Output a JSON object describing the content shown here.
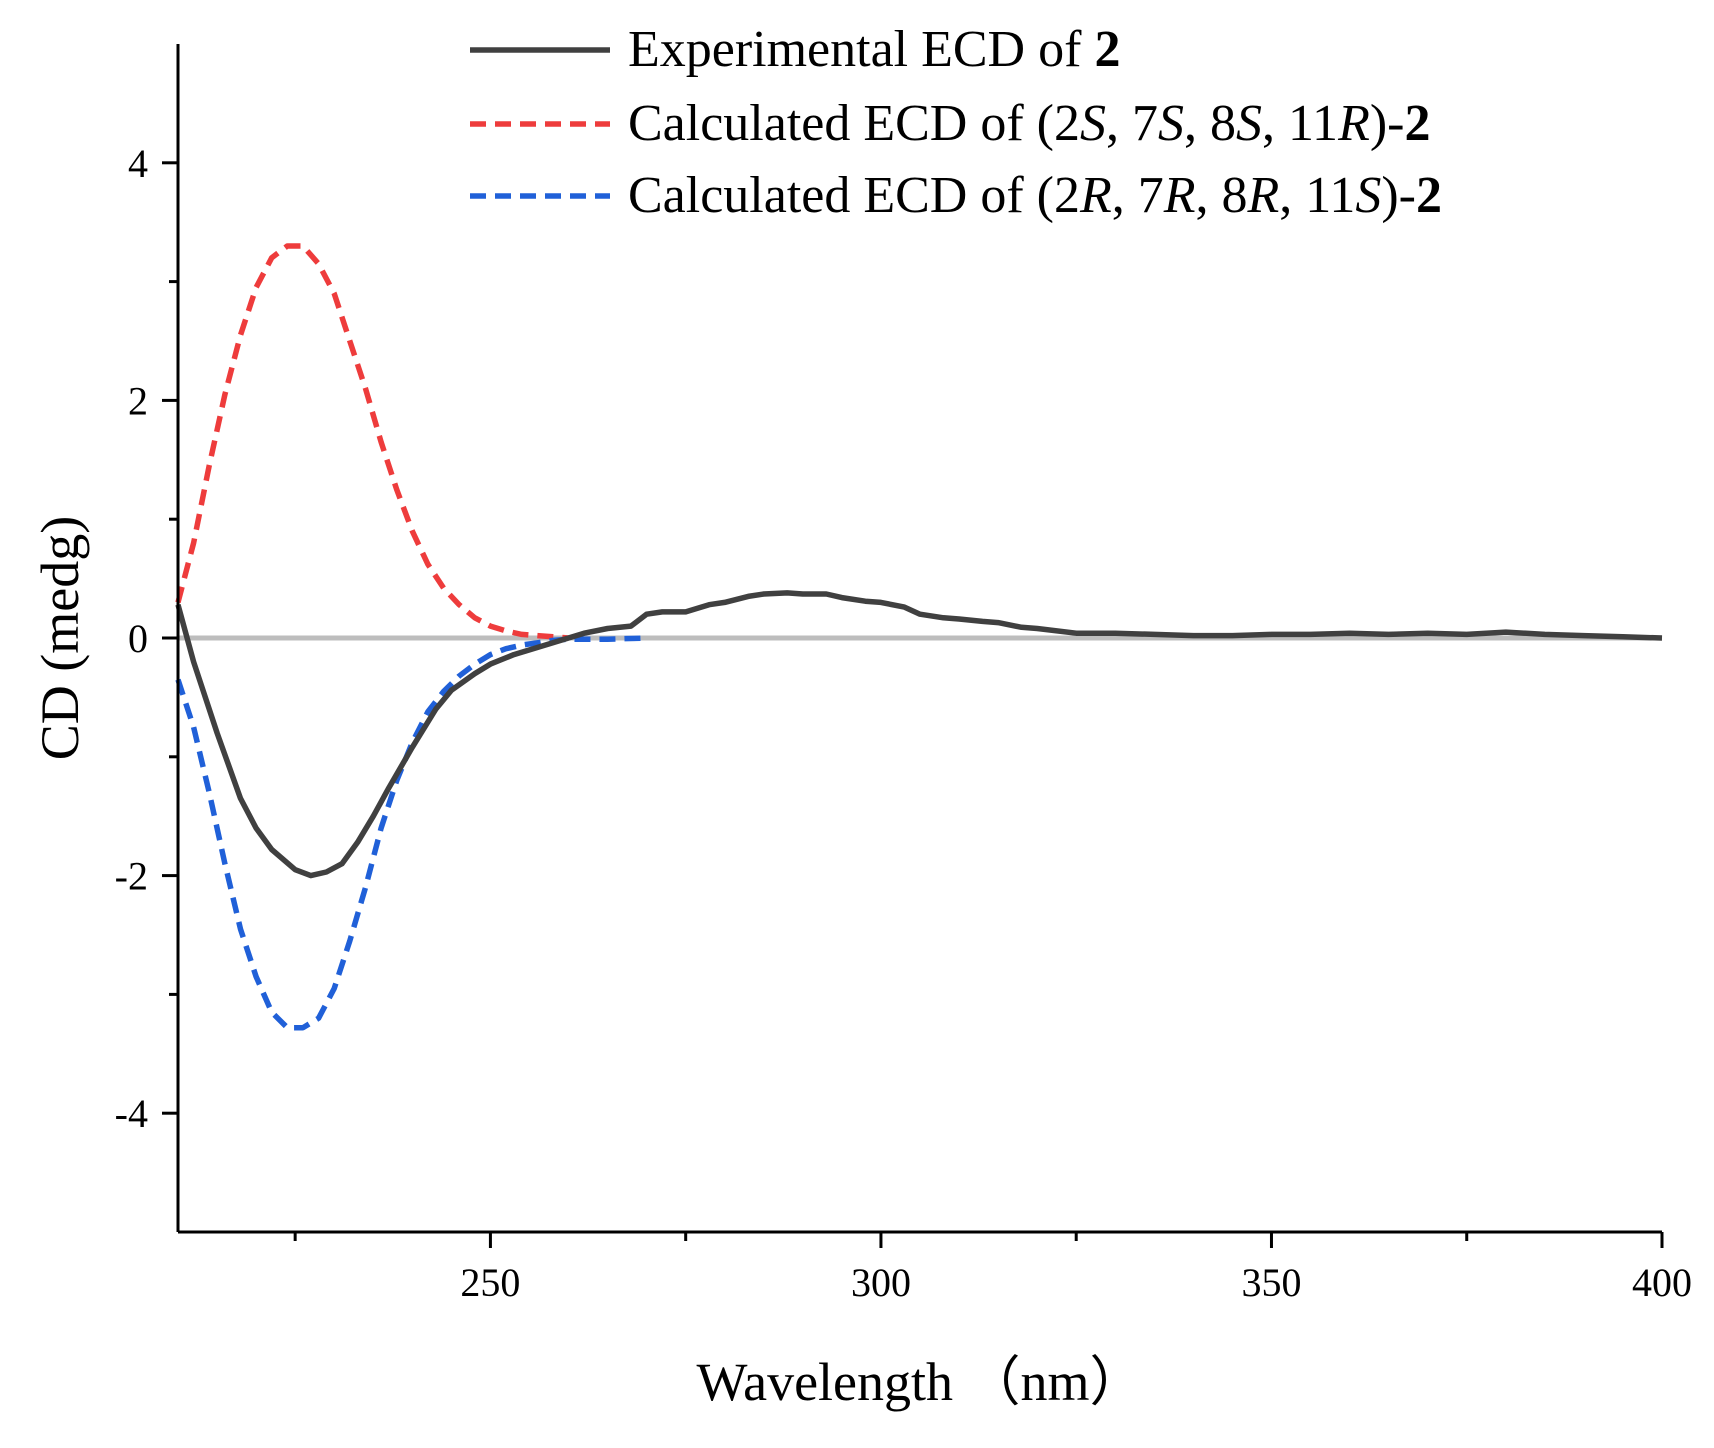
{
  "chart_data": {
    "type": "line",
    "title": "",
    "xlabel": "Wavelength （nm）",
    "ylabel": "CD (medg)",
    "xlim": [
      210,
      400
    ],
    "ylim": [
      -5,
      5
    ],
    "x_ticks": [
      250,
      300,
      350,
      400
    ],
    "y_ticks": [
      -4,
      -2,
      0,
      2,
      4
    ],
    "grid": false,
    "legend_position": "top",
    "zero_line": {
      "y": 0,
      "color": "#bdbdbd"
    },
    "series": [
      {
        "name": "Experimental ECD of 2",
        "legend": [
          {
            "text": "Experimental ECD of ",
            "style": "normal"
          },
          {
            "text": "2",
            "style": "bold"
          }
        ],
        "color": "#404040",
        "dash": "solid",
        "x": [
          210,
          212,
          215,
          218,
          220,
          222,
          225,
          227,
          229,
          231,
          233,
          235,
          237,
          240,
          243,
          245,
          248,
          250,
          253,
          255,
          258,
          260,
          262,
          265,
          268,
          270,
          272,
          275,
          278,
          280,
          283,
          285,
          288,
          290,
          293,
          295,
          298,
          300,
          303,
          305,
          308,
          310,
          313,
          315,
          318,
          320,
          325,
          330,
          335,
          340,
          345,
          350,
          355,
          360,
          365,
          370,
          375,
          380,
          385,
          390,
          395,
          400
        ],
        "values": [
          0.28,
          -0.2,
          -0.8,
          -1.35,
          -1.6,
          -1.78,
          -1.95,
          -2.0,
          -1.97,
          -1.9,
          -1.72,
          -1.5,
          -1.26,
          -0.92,
          -0.6,
          -0.44,
          -0.3,
          -0.22,
          -0.14,
          -0.1,
          -0.04,
          0.0,
          0.04,
          0.08,
          0.1,
          0.2,
          0.22,
          0.22,
          0.28,
          0.3,
          0.35,
          0.37,
          0.38,
          0.37,
          0.37,
          0.34,
          0.31,
          0.3,
          0.26,
          0.2,
          0.17,
          0.16,
          0.14,
          0.13,
          0.09,
          0.08,
          0.04,
          0.04,
          0.03,
          0.02,
          0.02,
          0.03,
          0.03,
          0.04,
          0.03,
          0.04,
          0.03,
          0.05,
          0.03,
          0.02,
          0.01,
          0.0
        ]
      },
      {
        "name": "Calculated ECD of (2S, 7S, 8S, 11R)-2",
        "legend": [
          {
            "text": "Calculated  ECD of (2",
            "style": "normal"
          },
          {
            "text": "S",
            "style": "italic"
          },
          {
            "text": ", 7",
            "style": "normal"
          },
          {
            "text": "S",
            "style": "italic"
          },
          {
            "text": ", 8",
            "style": "normal"
          },
          {
            "text": "S",
            "style": "italic"
          },
          {
            "text": ", 11",
            "style": "normal"
          },
          {
            "text": "R",
            "style": "italic"
          },
          {
            "text": ")-",
            "style": "normal"
          },
          {
            "text": "2",
            "style": "bold"
          }
        ],
        "color": "#ee3c3c",
        "dash": "dashed",
        "x": [
          210,
          212,
          214,
          216,
          218,
          220,
          222,
          224,
          226,
          228,
          230,
          232,
          234,
          236,
          238,
          240,
          242,
          244,
          246,
          248,
          250,
          252,
          254,
          256,
          258,
          260
        ],
        "values": [
          0.3,
          0.8,
          1.45,
          2.05,
          2.55,
          2.95,
          3.2,
          3.3,
          3.3,
          3.15,
          2.9,
          2.5,
          2.1,
          1.65,
          1.25,
          0.9,
          0.62,
          0.42,
          0.28,
          0.17,
          0.1,
          0.06,
          0.03,
          0.02,
          0.01,
          0.0
        ]
      },
      {
        "name": "Calculated ECD of (2R, 7R, 8R, 11S)-2",
        "legend": [
          {
            "text": "Calculated  ECD of (2",
            "style": "normal"
          },
          {
            "text": "R",
            "style": "italic"
          },
          {
            "text": ", 7",
            "style": "normal"
          },
          {
            "text": "R",
            "style": "italic"
          },
          {
            "text": ", 8",
            "style": "normal"
          },
          {
            "text": "R",
            "style": "italic"
          },
          {
            "text": ", 11",
            "style": "normal"
          },
          {
            "text": "S",
            "style": "italic"
          },
          {
            "text": ")-",
            "style": "normal"
          },
          {
            "text": "2",
            "style": "bold"
          }
        ],
        "color": "#2060d8",
        "dash": "dashed",
        "x": [
          210,
          212,
          214,
          216,
          218,
          220,
          222,
          224,
          226,
          228,
          230,
          232,
          234,
          236,
          238,
          240,
          242,
          244,
          246,
          248,
          250,
          252,
          254,
          256,
          258,
          260,
          265,
          270
        ],
        "values": [
          -0.35,
          -0.75,
          -1.3,
          -1.9,
          -2.45,
          -2.85,
          -3.15,
          -3.28,
          -3.28,
          -3.2,
          -2.95,
          -2.55,
          -2.1,
          -1.6,
          -1.2,
          -0.88,
          -0.62,
          -0.45,
          -0.32,
          -0.22,
          -0.14,
          -0.09,
          -0.06,
          -0.04,
          -0.02,
          -0.01,
          -0.01,
          0.0
        ]
      }
    ]
  }
}
